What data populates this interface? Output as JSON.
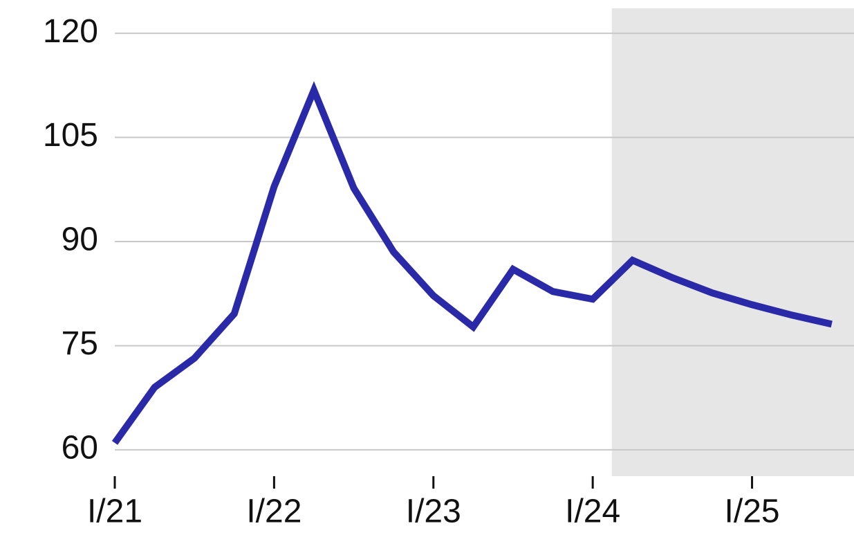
{
  "chart_data": {
    "type": "line",
    "x": [
      2021,
      2021.25,
      2021.5,
      2021.75,
      2022,
      2022.25,
      2022.5,
      2022.75,
      2023,
      2023.25,
      2023.5,
      2023.75,
      2024,
      2024.25,
      2024.5,
      2024.75,
      2025,
      2025.25,
      2025.5
    ],
    "series": [
      {
        "color": "#2a2aa8",
        "values": [
          61,
          69,
          73.2,
          79.6,
          97.9,
          111.8,
          97.7,
          88.5,
          82.2,
          77.7,
          86,
          82.8,
          81.7,
          87.3,
          84.8,
          82.6,
          80.9,
          79.4,
          78.1
        ]
      }
    ],
    "xlim": [
      2021,
      2025.64
    ],
    "xticks": [
      {
        "value": 2021,
        "label": "I/21"
      },
      {
        "value": 2022,
        "label": "I/22"
      },
      {
        "value": 2023,
        "label": "I/23"
      },
      {
        "value": 2024,
        "label": "I/24"
      },
      {
        "value": 2025,
        "label": "I/25"
      }
    ],
    "ylim": [
      56.2,
      123.6
    ],
    "yticks": [
      60,
      75,
      90,
      105,
      120
    ],
    "grid": true,
    "shaded_region": [
      2024.12,
      2025.64
    ]
  }
}
